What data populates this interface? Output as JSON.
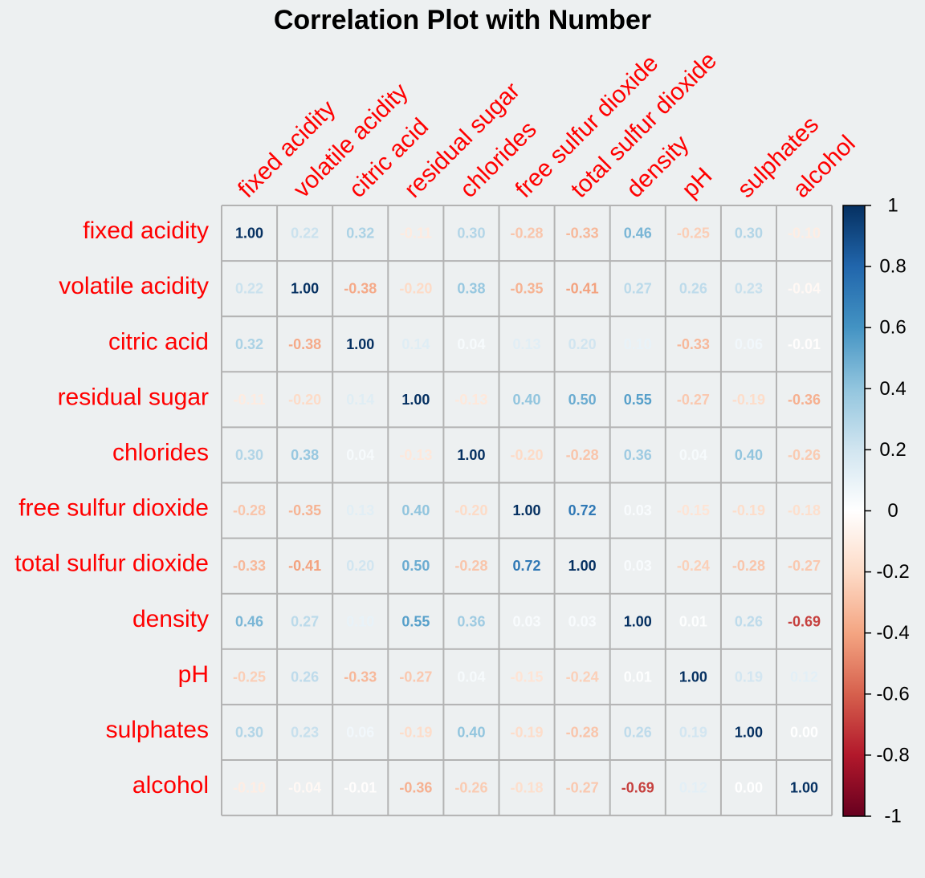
{
  "chart_data": {
    "type": "heatmap",
    "title": "Correlation Plot with Number",
    "variables": [
      "fixed acidity",
      "volatile acidity",
      "citric acid",
      "residual sugar",
      "chlorides",
      "free sulfur dioxide",
      "total sulfur dioxide",
      "density",
      "pH",
      "sulphates",
      "alcohol"
    ],
    "matrix": [
      [
        1.0,
        0.22,
        0.32,
        -0.11,
        0.3,
        -0.28,
        -0.33,
        0.46,
        -0.25,
        0.3,
        -0.1
      ],
      [
        0.22,
        1.0,
        -0.38,
        -0.2,
        0.38,
        -0.35,
        -0.41,
        0.27,
        0.26,
        0.23,
        -0.04
      ],
      [
        0.32,
        -0.38,
        1.0,
        0.14,
        0.04,
        0.13,
        0.2,
        0.1,
        -0.33,
        0.06,
        -0.01
      ],
      [
        -0.11,
        -0.2,
        0.14,
        1.0,
        -0.13,
        0.4,
        0.5,
        0.55,
        -0.27,
        -0.19,
        -0.36
      ],
      [
        0.3,
        0.38,
        0.04,
        -0.13,
        1.0,
        -0.2,
        -0.28,
        0.36,
        0.04,
        0.4,
        -0.26
      ],
      [
        -0.28,
        -0.35,
        0.13,
        0.4,
        -0.2,
        1.0,
        0.72,
        0.03,
        -0.15,
        -0.19,
        -0.18
      ],
      [
        -0.33,
        -0.41,
        0.2,
        0.5,
        -0.28,
        0.72,
        1.0,
        0.03,
        -0.24,
        -0.28,
        -0.27
      ],
      [
        0.46,
        0.27,
        0.1,
        0.55,
        0.36,
        0.03,
        0.03,
        1.0,
        0.01,
        0.26,
        -0.69
      ],
      [
        -0.25,
        0.26,
        -0.33,
        -0.27,
        0.04,
        -0.15,
        -0.24,
        0.01,
        1.0,
        0.19,
        0.12
      ],
      [
        0.3,
        0.23,
        0.06,
        -0.19,
        0.4,
        -0.19,
        -0.28,
        0.26,
        0.19,
        1.0,
        0.0
      ],
      [
        -0.1,
        -0.04,
        -0.01,
        -0.36,
        -0.26,
        -0.18,
        -0.27,
        -0.69,
        0.12,
        0.0,
        1.0
      ]
    ],
    "colorbar": {
      "range": [
        -1,
        1
      ],
      "ticks": [
        "1",
        "0.8",
        "0.6",
        "0.4",
        "0.2",
        "0",
        "-0.2",
        "-0.4",
        "-0.6",
        "-0.8",
        "-1"
      ],
      "palette": [
        "#67001f",
        "#b2182b",
        "#d6604d",
        "#f4a582",
        "#fddbc7",
        "#ffffff",
        "#d1e5f0",
        "#92c5de",
        "#4393c3",
        "#2166ac",
        "#053061"
      ]
    },
    "label_color": "#ff0000",
    "grid": true,
    "legend_position": "right"
  }
}
